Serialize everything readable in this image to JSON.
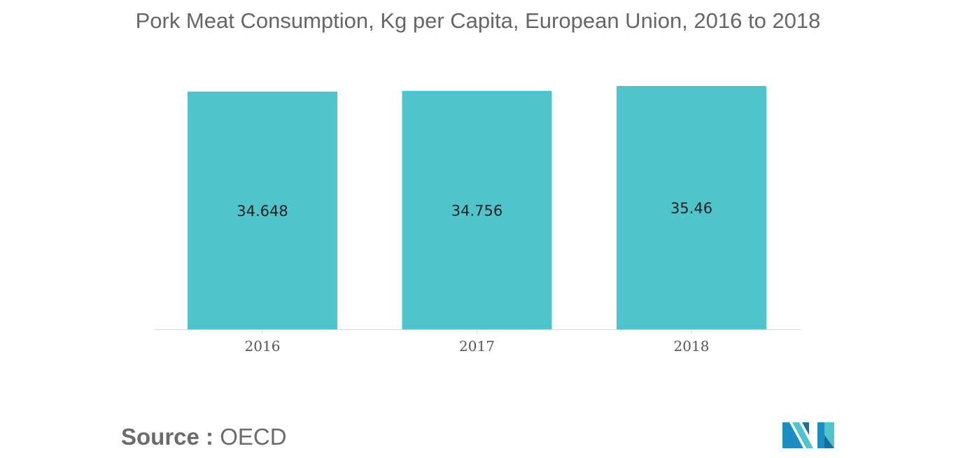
{
  "title": "Pork Meat Consumption, Kg per Capita, European Union, 2016 to 2018",
  "source": {
    "label": "Source :",
    "value": "OECD"
  },
  "logo": {
    "icon": "mordor-intelligence-logo-icon",
    "colors": [
      "#1b8fc4",
      "#50c4cb",
      "#1a6e9e"
    ]
  },
  "chart_data": {
    "type": "bar",
    "categories": [
      "2016",
      "2017",
      "2018"
    ],
    "values": [
      34.648,
      34.756,
      35.46
    ],
    "data_labels": [
      "34.648",
      "34.756",
      "35.46"
    ],
    "title": "Pork Meat Consumption, Kg per Capita, European Union, 2016 to 2018",
    "xlabel": "",
    "ylabel": "",
    "ylim": [
      0,
      35.46
    ],
    "grid": false,
    "legend": "none",
    "bar_color": "#50c4cb",
    "axis_color": "#d9d9d9"
  }
}
